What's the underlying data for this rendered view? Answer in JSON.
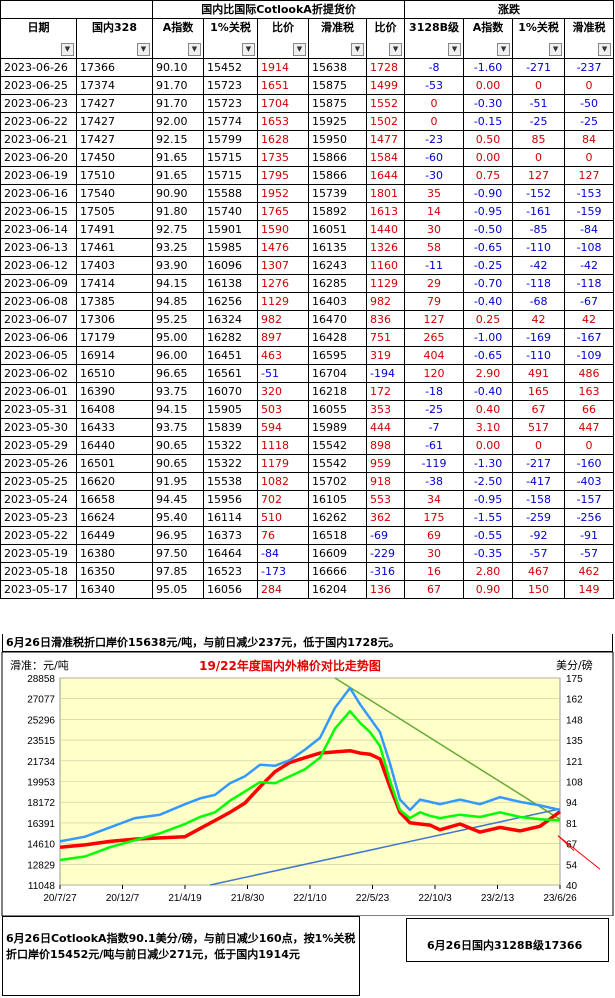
{
  "table": {
    "group_header_1": "国内比国际CotlookA折提货价",
    "group_header_2": "涨跌",
    "columns": [
      "日期",
      "国内328",
      "A指数",
      "1%关税",
      "比价",
      "滑准税",
      "比价",
      "3128B级",
      "A指数",
      "1%关税",
      "滑准税"
    ],
    "rows": [
      [
        "2023-06-26",
        "17366",
        "90.10",
        "15452",
        "1914",
        "15638",
        "1728",
        "-8",
        "-1.60",
        "-271",
        "-237"
      ],
      [
        "2023-06-25",
        "17374",
        "91.70",
        "15723",
        "1651",
        "15875",
        "1499",
        "-53",
        "0.00",
        "0",
        "0"
      ],
      [
        "2023-06-23",
        "17427",
        "91.70",
        "15723",
        "1704",
        "15875",
        "1552",
        "0",
        "-0.30",
        "-51",
        "-50"
      ],
      [
        "2023-06-22",
        "17427",
        "92.00",
        "15774",
        "1653",
        "15925",
        "1502",
        "0",
        "-0.15",
        "-25",
        "-25"
      ],
      [
        "2023-06-21",
        "17427",
        "92.15",
        "15799",
        "1628",
        "15950",
        "1477",
        "-23",
        "0.50",
        "85",
        "84"
      ],
      [
        "2023-06-20",
        "17450",
        "91.65",
        "15715",
        "1735",
        "15866",
        "1584",
        "-60",
        "0.00",
        "0",
        "0"
      ],
      [
        "2023-06-19",
        "17510",
        "91.65",
        "15715",
        "1795",
        "15866",
        "1644",
        "-30",
        "0.75",
        "127",
        "127"
      ],
      [
        "2023-06-16",
        "17540",
        "90.90",
        "15588",
        "1952",
        "15739",
        "1801",
        "35",
        "-0.90",
        "-152",
        "-153"
      ],
      [
        "2023-06-15",
        "17505",
        "91.80",
        "15740",
        "1765",
        "15892",
        "1613",
        "14",
        "-0.95",
        "-161",
        "-159"
      ],
      [
        "2023-06-14",
        "17491",
        "92.75",
        "15901",
        "1590",
        "16051",
        "1440",
        "30",
        "-0.50",
        "-85",
        "-84"
      ],
      [
        "2023-06-13",
        "17461",
        "93.25",
        "15985",
        "1476",
        "16135",
        "1326",
        "58",
        "-0.65",
        "-110",
        "-108"
      ],
      [
        "2023-06-12",
        "17403",
        "93.90",
        "16096",
        "1307",
        "16243",
        "1160",
        "-11",
        "-0.25",
        "-42",
        "-42"
      ],
      [
        "2023-06-09",
        "17414",
        "94.15",
        "16138",
        "1276",
        "16285",
        "1129",
        "29",
        "-0.70",
        "-118",
        "-118"
      ],
      [
        "2023-06-08",
        "17385",
        "94.85",
        "16256",
        "1129",
        "16403",
        "982",
        "79",
        "-0.40",
        "-68",
        "-67"
      ],
      [
        "2023-06-07",
        "17306",
        "95.25",
        "16324",
        "982",
        "16470",
        "836",
        "127",
        "0.25",
        "42",
        "42"
      ],
      [
        "2023-06-06",
        "17179",
        "95.00",
        "16282",
        "897",
        "16428",
        "751",
        "265",
        "-1.00",
        "-169",
        "-167"
      ],
      [
        "2023-06-05",
        "16914",
        "96.00",
        "16451",
        "463",
        "16595",
        "319",
        "404",
        "-0.65",
        "-110",
        "-109"
      ],
      [
        "2023-06-02",
        "16510",
        "96.65",
        "16561",
        "-51",
        "16704",
        "-194",
        "120",
        "2.90",
        "491",
        "486"
      ],
      [
        "2023-06-01",
        "16390",
        "93.75",
        "16070",
        "320",
        "16218",
        "172",
        "-18",
        "-0.40",
        "165",
        "163"
      ],
      [
        "2023-05-31",
        "16408",
        "94.15",
        "15905",
        "503",
        "16055",
        "353",
        "-25",
        "0.40",
        "67",
        "66"
      ],
      [
        "2023-05-30",
        "16433",
        "93.75",
        "15839",
        "594",
        "15989",
        "444",
        "-7",
        "3.10",
        "517",
        "447"
      ],
      [
        "2023-05-29",
        "16440",
        "90.65",
        "15322",
        "1118",
        "15542",
        "898",
        "-61",
        "0.00",
        "0",
        "0"
      ],
      [
        "2023-05-26",
        "16501",
        "90.65",
        "15322",
        "1179",
        "15542",
        "959",
        "-119",
        "-1.30",
        "-217",
        "-160"
      ],
      [
        "2023-05-25",
        "16620",
        "91.95",
        "15538",
        "1082",
        "15702",
        "918",
        "-38",
        "-2.50",
        "-417",
        "-403"
      ],
      [
        "2023-05-24",
        "16658",
        "94.45",
        "15956",
        "702",
        "16105",
        "553",
        "34",
        "-0.95",
        "-158",
        "-157"
      ],
      [
        "2023-05-23",
        "16624",
        "95.40",
        "16114",
        "510",
        "16262",
        "362",
        "175",
        "-1.55",
        "-259",
        "-256"
      ],
      [
        "2023-05-22",
        "16449",
        "96.95",
        "16373",
        "76",
        "16518",
        "-69",
        "69",
        "-0.55",
        "-92",
        "-91"
      ],
      [
        "2023-05-19",
        "16380",
        "97.50",
        "16464",
        "-84",
        "16609",
        "-229",
        "30",
        "-0.35",
        "-57",
        "-57"
      ],
      [
        "2023-05-18",
        "16350",
        "97.85",
        "16523",
        "-173",
        "16666",
        "-316",
        "16",
        "2.80",
        "467",
        "462"
      ],
      [
        "2023-05-17",
        "16340",
        "95.05",
        "16056",
        "284",
        "16204",
        "136",
        "67",
        "0.90",
        "150",
        "149"
      ]
    ]
  },
  "note_top": "6月26日滑准税折口岸价15638元/吨，与前日减少237元，低于国内1728元。",
  "note_bottom": "6月26日CotlookA指数90.1美分/磅，与前日减少160点，按1%关税折口岸价15452元/吨与前日减少271元，低于国内1914元",
  "note_right": "6月26日国内3128B级17366",
  "colors": {
    "red_value": "#d00000",
    "blue_value": "#0000d0",
    "plot_bg": "#ffffc8",
    "line_red": "#ff0000",
    "line_green": "#00ff00",
    "line_blue": "#3399ff",
    "trend_green": "#66aa33",
    "trend_blue": "#4477cc"
  },
  "chart_data": {
    "type": "line",
    "title": "19/22年度国内外棉价对比走势图",
    "ylabel_left": "滑准：元/吨",
    "ylabel_right": "美分/磅",
    "yticks_left": [
      "28858",
      "27077",
      "25296",
      "23515",
      "21734",
      "19953",
      "18172",
      "16391",
      "14610",
      "12829",
      "11048"
    ],
    "yticks_right": [
      "175",
      "162",
      "148",
      "135",
      "121",
      "108",
      "94",
      "81",
      "67",
      "54",
      "40"
    ],
    "xticks": [
      "20/7/27",
      "20/12/7",
      "21/4/19",
      "21/8/30",
      "22/1/10",
      "22/5/23",
      "22/10/3",
      "23/2/13",
      "23/6/26"
    ],
    "ylim_left": [
      11048,
      28858
    ],
    "ylim_right": [
      40,
      175
    ],
    "series": [
      {
        "color_key": "line_red",
        "x": [
          0,
          0.05,
          0.1,
          0.15,
          0.2,
          0.25,
          0.28,
          0.31,
          0.34,
          0.37,
          0.4,
          0.43,
          0.46,
          0.49,
          0.52,
          0.55,
          0.58,
          0.6,
          0.62,
          0.64,
          0.66,
          0.68,
          0.7,
          0.72,
          0.74,
          0.76,
          0.8,
          0.84,
          0.88,
          0.92,
          0.96,
          1.0
        ],
        "y": [
          14300,
          14500,
          14800,
          15000,
          15100,
          15200,
          15900,
          16600,
          17300,
          18100,
          19500,
          20800,
          21600,
          22000,
          22400,
          22500,
          22600,
          22400,
          22300,
          21900,
          19500,
          17300,
          16400,
          16300,
          16200,
          15800,
          16300,
          15600,
          16000,
          15700,
          16100,
          17366
        ]
      },
      {
        "color_key": "line_green",
        "x": [
          0,
          0.05,
          0.1,
          0.15,
          0.2,
          0.25,
          0.28,
          0.31,
          0.34,
          0.37,
          0.4,
          0.43,
          0.46,
          0.49,
          0.52,
          0.55,
          0.58,
          0.6,
          0.62,
          0.64,
          0.66,
          0.68,
          0.7,
          0.72,
          0.74,
          0.76,
          0.8,
          0.84,
          0.88,
          0.92,
          0.96,
          1.0
        ],
        "y": [
          13200,
          13500,
          14300,
          14900,
          15500,
          16300,
          16900,
          17300,
          18300,
          19100,
          19900,
          19800,
          20400,
          21000,
          22000,
          24500,
          26000,
          25000,
          24200,
          23000,
          20000,
          17500,
          16800,
          17300,
          17000,
          16800,
          17100,
          16900,
          17300,
          16900,
          16700,
          16600
        ]
      },
      {
        "color_key": "line_blue",
        "x": [
          0,
          0.05,
          0.1,
          0.15,
          0.2,
          0.25,
          0.28,
          0.31,
          0.34,
          0.37,
          0.4,
          0.43,
          0.46,
          0.49,
          0.52,
          0.55,
          0.58,
          0.6,
          0.62,
          0.64,
          0.66,
          0.68,
          0.7,
          0.72,
          0.74,
          0.76,
          0.8,
          0.84,
          0.88,
          0.92,
          0.96,
          1.0
        ],
        "y": [
          14800,
          15200,
          16000,
          16800,
          17100,
          18000,
          18500,
          18800,
          19800,
          20400,
          21400,
          21300,
          21800,
          22700,
          23700,
          26300,
          28000,
          26600,
          25400,
          24200,
          21500,
          18400,
          17500,
          18400,
          18200,
          18000,
          18400,
          18000,
          18600,
          18200,
          17900,
          17500
        ]
      }
    ],
    "trendlines": [
      {
        "color_key": "trend_green",
        "from": [
          0.55,
          28858
        ],
        "to": [
          1.0,
          16700
        ]
      },
      {
        "color_key": "trend_blue",
        "from": [
          0.3,
          11048
        ],
        "to": [
          1.0,
          17600
        ]
      }
    ]
  }
}
